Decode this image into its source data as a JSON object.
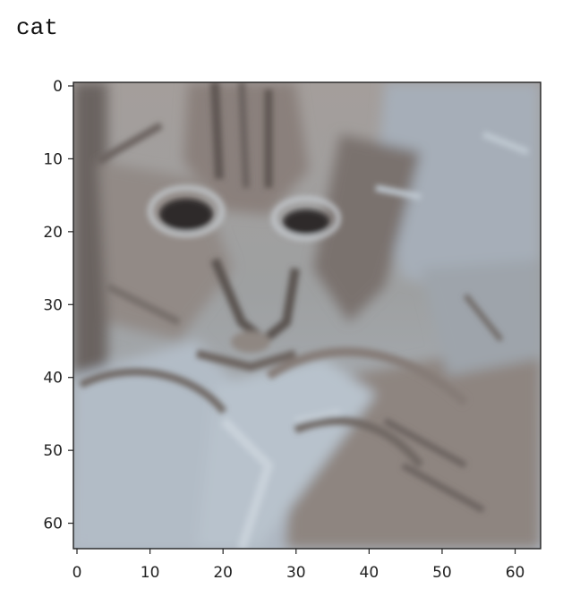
{
  "output": {
    "label": "cat"
  },
  "plot": {
    "type": "image",
    "x_ticks": [
      "0",
      "10",
      "20",
      "30",
      "40",
      "50",
      "60"
    ],
    "y_ticks": [
      "0",
      "10",
      "20",
      "30",
      "40",
      "50",
      "60"
    ],
    "extent": [
      64,
      64
    ],
    "colors": {
      "frame": "#222222",
      "gray_light": "#b4bfca",
      "gray_mid": "#9aa1a8",
      "gray_dark": "#5c5652",
      "fur_brown": "#857a72",
      "eye_dark": "#2f2a2a"
    }
  }
}
